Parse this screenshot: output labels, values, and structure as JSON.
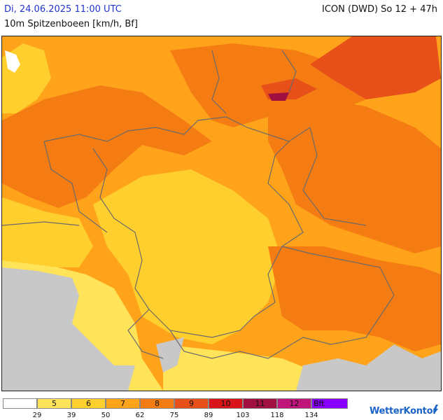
{
  "header": {
    "datetime": "Di, 24.06.2025 11:00 UTC",
    "parameter": "10m Spitzenboeen [km/h, Bf]",
    "model_run": "ICON (DWD) So 12 + 47h"
  },
  "map": {
    "region": "Central Europe / Germany",
    "no_data_color": "#c8c8c8",
    "border_color": "#6a6a6a"
  },
  "legend": {
    "cells": [
      {
        "label": "",
        "color": "#ffffff"
      },
      {
        "label": "5",
        "color": "#ffe45a"
      },
      {
        "label": "6",
        "color": "#ffcf2e"
      },
      {
        "label": "7",
        "color": "#ffa41a"
      },
      {
        "label": "8",
        "color": "#f57c12"
      },
      {
        "label": "9",
        "color": "#e8501a"
      },
      {
        "label": "10",
        "color": "#d8141a"
      },
      {
        "label": "11",
        "color": "#a01040"
      },
      {
        "label": "12",
        "color": "#c0147a"
      },
      {
        "label": "Bft",
        "color": "#8a00ff"
      }
    ],
    "thresholds": [
      "29",
      "39",
      "50",
      "62",
      "75",
      "89",
      "103",
      "118",
      "134"
    ]
  },
  "brand": {
    "name": "WetterKontor",
    "icon": "wetterkontor-logo-icon"
  }
}
